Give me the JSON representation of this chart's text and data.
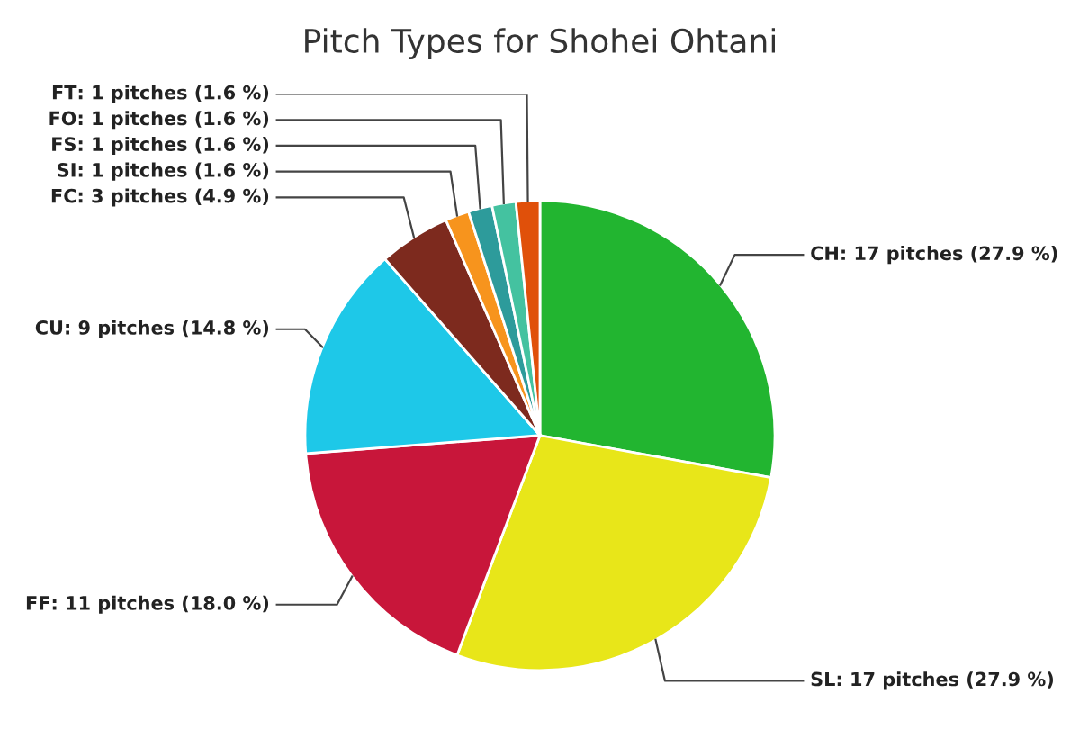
{
  "chart_data": {
    "type": "pie",
    "title": "Pitch Types for Shohei Ohtani",
    "categories": [
      "CH",
      "SL",
      "FF",
      "CU",
      "FC",
      "SI",
      "FS",
      "FO",
      "FT"
    ],
    "values": [
      17,
      17,
      11,
      9,
      3,
      1,
      1,
      1,
      1
    ],
    "colors": [
      "#22b530",
      "#e8e619",
      "#c8163a",
      "#1ec8e8",
      "#7d2a1e",
      "#f7941d",
      "#2d9b9b",
      "#44c2a0",
      "#e0500a"
    ],
    "value_labels": [
      ": 17 pitches (27.9 %)",
      ": 17 pitches (27.9 %)",
      ": 11 pitches (18.0 %)",
      ": 9 pitches (14.8 %)",
      ": 3 pitches (4.9 %)",
      ": 1 pitches (1.6 %)",
      ": 1 pitches (1.6 %)",
      ": 1 pitches (1.6 %)",
      ": 1 pitches (1.6 %)"
    ],
    "legend": false
  }
}
